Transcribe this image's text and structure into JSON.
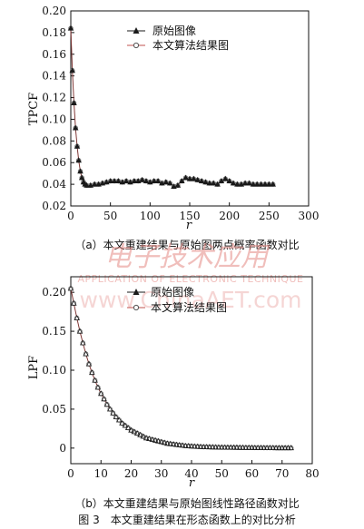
{
  "chart_data": [
    {
      "type": "line",
      "ylabel": "TPCF",
      "xlabel": "r",
      "xlim": [
        0,
        300
      ],
      "ylim": [
        0.02,
        0.2
      ],
      "xticks": [
        "0",
        "50",
        "100",
        "150",
        "200",
        "250",
        "300"
      ],
      "yticks": [
        "0.02",
        "0.04",
        "0.06",
        "0.08",
        "0.10",
        "0.12",
        "0.14",
        "0.16",
        "0.18",
        "0.20"
      ],
      "legend_position": "top-center",
      "series": [
        {
          "name": "原始图像",
          "marker": "triangle",
          "color": "#1a1a1a"
        },
        {
          "name": "本文算法结果图",
          "marker": "circle",
          "color": "#c0504d"
        }
      ],
      "x": [
        0,
        2,
        4,
        6,
        8,
        10,
        12,
        14,
        16,
        18,
        20,
        25,
        30,
        35,
        40,
        45,
        50,
        55,
        60,
        65,
        70,
        75,
        80,
        85,
        90,
        95,
        100,
        105,
        110,
        115,
        120,
        125,
        130,
        135,
        140,
        145,
        150,
        155,
        160,
        165,
        170,
        175,
        180,
        185,
        190,
        195,
        200,
        205,
        210,
        215,
        220,
        225,
        230,
        235,
        240,
        245,
        250,
        255
      ],
      "values": [
        0.184,
        0.145,
        0.115,
        0.092,
        0.075,
        0.062,
        0.052,
        0.046,
        0.042,
        0.04,
        0.039,
        0.039,
        0.04,
        0.04,
        0.041,
        0.042,
        0.043,
        0.043,
        0.043,
        0.042,
        0.043,
        0.042,
        0.043,
        0.043,
        0.044,
        0.043,
        0.042,
        0.043,
        0.043,
        0.041,
        0.042,
        0.041,
        0.038,
        0.039,
        0.043,
        0.046,
        0.045,
        0.045,
        0.044,
        0.043,
        0.042,
        0.041,
        0.041,
        0.04,
        0.043,
        0.045,
        0.043,
        0.041,
        0.04,
        0.04,
        0.041,
        0.041,
        0.04,
        0.04,
        0.04,
        0.04,
        0.04,
        0.04
      ],
      "caption": "（a）本文重建结果与原始图两点概率函数对比"
    },
    {
      "type": "line",
      "ylabel": "LPF",
      "xlabel": "r",
      "xlim": [
        0,
        80
      ],
      "ylim": [
        -0.02,
        0.22
      ],
      "xticks": [
        "0",
        "10",
        "20",
        "30",
        "40",
        "50",
        "60",
        "70",
        "80"
      ],
      "yticks": [
        "0",
        "0.05",
        "0.10",
        "0.15",
        "0.20"
      ],
      "legend_position": "top-center",
      "series": [
        {
          "name": "原始图像",
          "marker": "triangle",
          "color": "#1a1a1a"
        },
        {
          "name": "本文算法结果图",
          "marker": "circle",
          "color": "#c0504d"
        }
      ],
      "x": [
        0,
        1,
        2,
        3,
        4,
        5,
        6,
        7,
        8,
        9,
        10,
        11,
        12,
        13,
        14,
        15,
        16,
        17,
        18,
        19,
        20,
        21,
        22,
        23,
        24,
        25,
        26,
        27,
        28,
        29,
        30,
        31,
        32,
        33,
        34,
        35,
        36,
        37,
        38,
        39,
        40,
        41,
        42,
        43,
        44,
        45,
        46,
        47,
        48,
        49,
        50,
        51,
        52,
        53,
        54,
        55,
        56,
        57,
        58,
        59,
        60,
        61,
        62,
        63,
        64,
        65,
        66,
        67,
        68,
        69,
        70,
        71,
        72,
        73
      ],
      "values": [
        0.205,
        0.186,
        0.167,
        0.15,
        0.135,
        0.121,
        0.108,
        0.097,
        0.087,
        0.078,
        0.07,
        0.063,
        0.056,
        0.05,
        0.045,
        0.04,
        0.036,
        0.032,
        0.029,
        0.026,
        0.023,
        0.021,
        0.019,
        0.017,
        0.015,
        0.013,
        0.012,
        0.011,
        0.01,
        0.009,
        0.008,
        0.007,
        0.006,
        0.0055,
        0.005,
        0.0045,
        0.004,
        0.0035,
        0.003,
        0.0028,
        0.0025,
        0.0022,
        0.002,
        0.0018,
        0.0016,
        0.0015,
        0.0014,
        0.0013,
        0.0012,
        0.0011,
        0.001,
        0.001,
        0.0009,
        0.0009,
        0.0008,
        0.0008,
        0.0007,
        0.0007,
        0.0006,
        0.0006,
        0.0006,
        0.0005,
        0.0005,
        0.0005,
        0.0004,
        0.0004,
        0.0004,
        0.0004,
        0.0003,
        0.0003,
        0.0003,
        0.0003,
        0.0003,
        0.0003
      ],
      "caption": "（b）本文重建结果与原始图线性路径函数对比"
    }
  ],
  "figure_caption": "图 3　本文重建结果在形态函数上的对比分析",
  "watermark": {
    "logo_text": "电子技术应用",
    "tagline": "APPLICATION OF ELECTRONIC TECHNIQUE",
    "url": "www.ChinaAET.com"
  }
}
